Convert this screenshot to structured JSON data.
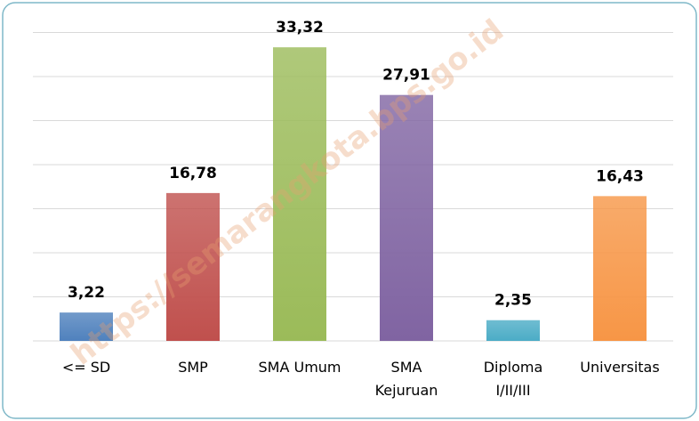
{
  "chart_data": {
    "type": "bar",
    "categories": [
      "<= SD",
      "SMP",
      "SMA Umum",
      "SMA\nKejuruan",
      "Diploma\nI/II/III",
      "Universitas"
    ],
    "values": [
      3.22,
      16.78,
      33.32,
      27.91,
      2.35,
      16.43
    ],
    "value_labels": [
      "3,22",
      "16,78",
      "33,32",
      "27,91",
      "2,35",
      "16,43"
    ],
    "colors": [
      "#4f81bd",
      "#c0504d",
      "#9bbb59",
      "#8064a2",
      "#4bacc6",
      "#f79646"
    ],
    "ylim": [
      0,
      35
    ],
    "yticks": [
      0,
      5,
      10,
      15,
      20,
      25,
      30,
      35
    ],
    "grid": true,
    "watermark": "https://semarangkota.bps.go.id"
  }
}
